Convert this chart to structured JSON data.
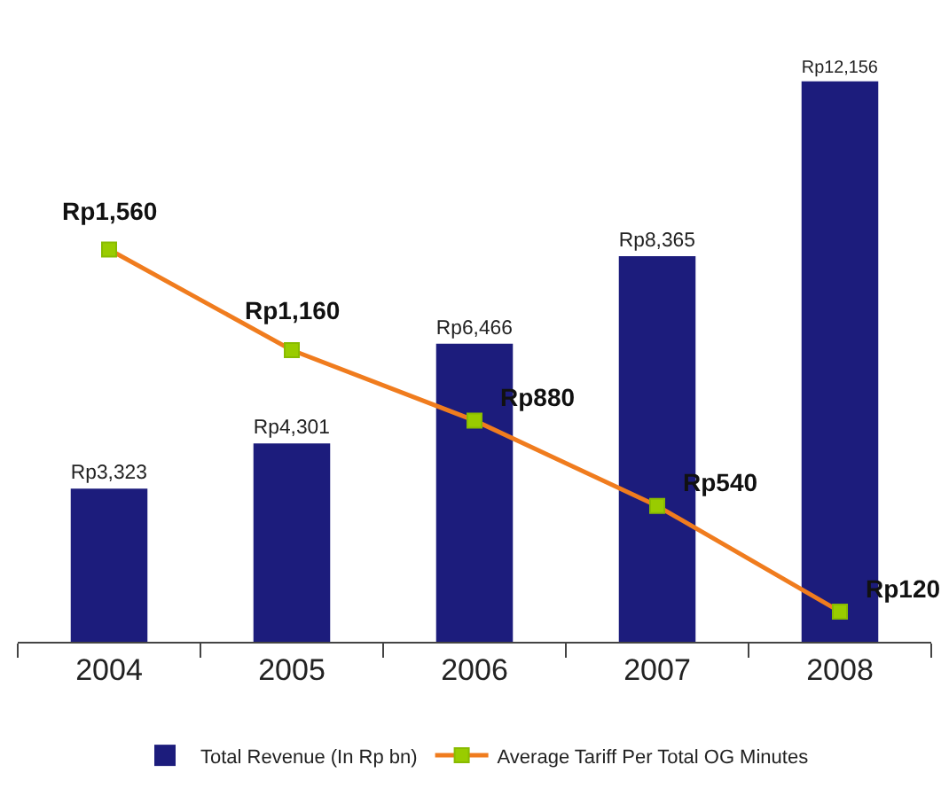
{
  "chart_data": {
    "type": "bar",
    "categories": [
      "2004",
      "2005",
      "2006",
      "2007",
      "2008"
    ],
    "series": [
      {
        "name": "Total Revenue (In Rp bn)",
        "color": "#1c1c7c",
        "values": [
          3323,
          4301,
          6466,
          8365,
          12156
        ],
        "value_labels": [
          "Rp3,323",
          "Rp4,301",
          "Rp6,466",
          "Rp8,365",
          "Rp12,156"
        ]
      },
      {
        "name": "Average Tariff Per Total OG Minutes",
        "type": "line",
        "axis": "y2",
        "color": "#f07c1e",
        "values": [
          1560,
          1160,
          880,
          540,
          120
        ],
        "value_labels": [
          "Rp1,560",
          "Rp1,160",
          "Rp880",
          "Rp540",
          "Rp120"
        ]
      }
    ],
    "tick_labels": "x",
    "legend": "bottom",
    "marker": "square",
    "line_style": "solid"
  }
}
